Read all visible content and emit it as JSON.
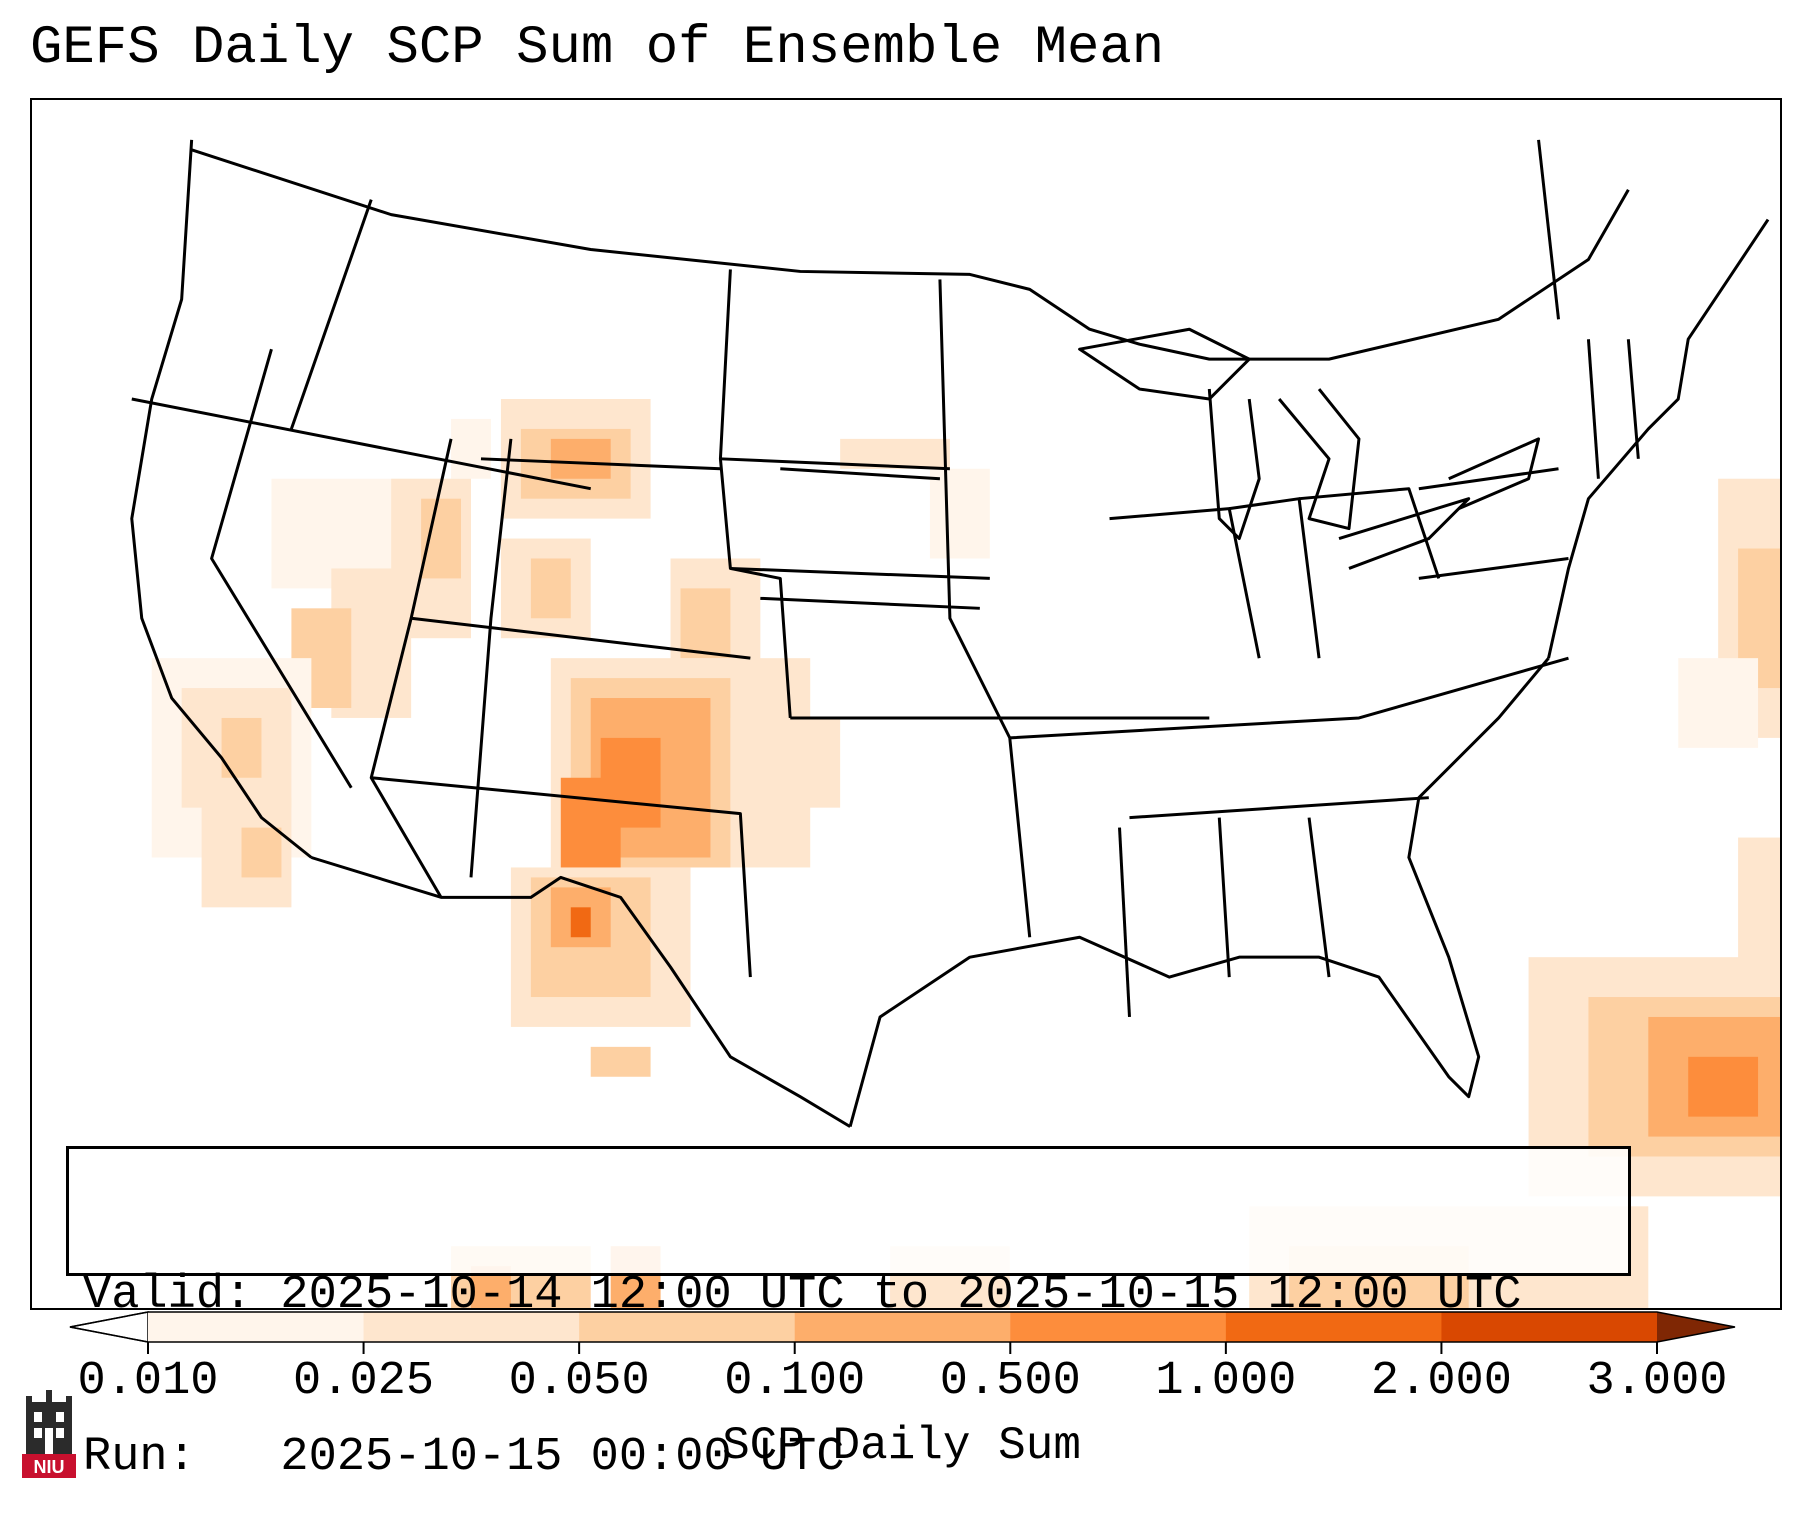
{
  "title": "GEFS Daily SCP Sum of Ensemble Mean",
  "info": {
    "valid_line": "Valid: 2025-10-14 12:00 UTC to 2025-10-15 12:00 UTC",
    "run_line": "Run:   2025-10-15 00:00 UTC"
  },
  "colorbar": {
    "label": "SCP Daily Sum",
    "ticks": [
      "0.010",
      "0.025",
      "0.050",
      "0.100",
      "0.500",
      "1.000",
      "2.000",
      "3.000"
    ],
    "colors": [
      "#fff5eb",
      "#fee6ce",
      "#fdd0a2",
      "#fdae6b",
      "#fd8d3c",
      "#f16913",
      "#d94801",
      "#a63603"
    ],
    "under_color": "#ffffff",
    "over_color": "#7f2704"
  },
  "logo": {
    "text": "NIU",
    "icon": "university-tower-icon",
    "colors": {
      "tower": "#2b2b2b",
      "badge": "#c8102e"
    }
  }
}
